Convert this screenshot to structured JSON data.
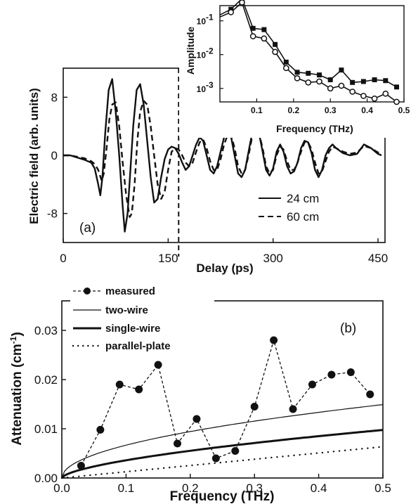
{
  "chart_data": [
    {
      "id": "panel-a",
      "type": "line",
      "panel_label": "(a)",
      "xlabel": "Delay (ps)",
      "ylabel": "Electric field (arb. units)",
      "xlim": [
        0,
        460
      ],
      "ylim": [
        -12,
        12
      ],
      "xticks": [
        0,
        150,
        300,
        450
      ],
      "yticks": [
        -8,
        0,
        8
      ],
      "dashed_marker_x": 165,
      "series": [
        {
          "name": "24 cm",
          "style": "solid",
          "x": [
            0,
            10,
            20,
            30,
            40,
            45,
            50,
            53,
            56,
            60,
            65,
            70,
            75,
            80,
            85,
            88,
            92,
            96,
            100,
            105,
            110,
            115,
            120,
            125,
            130,
            135,
            140,
            145,
            150,
            155,
            160,
            165,
            170,
            175,
            180,
            185,
            190,
            195,
            200,
            205,
            210,
            215,
            220,
            225,
            230,
            235,
            240,
            245,
            250,
            255,
            260,
            265,
            270,
            275,
            280,
            285,
            290,
            295,
            300,
            305,
            310,
            315,
            320,
            325,
            330,
            335,
            340,
            345,
            350,
            355,
            360,
            365,
            370,
            375,
            380,
            385,
            390,
            400,
            410,
            420,
            430,
            440,
            450,
            455
          ],
          "y": [
            0,
            0,
            -0.3,
            -0.6,
            -1.0,
            -1.8,
            -4.0,
            -5.5,
            -3.0,
            3.0,
            9.0,
            10.5,
            6.0,
            0.0,
            -7.0,
            -10.5,
            -8.0,
            -2.0,
            4.0,
            9.0,
            9.8,
            7.0,
            2.0,
            -3.0,
            -6.5,
            -6.0,
            -3.0,
            -0.5,
            0.8,
            1.2,
            1.0,
            0.2,
            -1.0,
            -2.0,
            -1.5,
            0.0,
            1.5,
            2.5,
            2.0,
            0.0,
            -2.0,
            -2.5,
            -1.5,
            0.5,
            2.5,
            3.3,
            2.5,
            0.0,
            -2.5,
            -3.0,
            -2.0,
            0.5,
            3.0,
            3.8,
            3.0,
            0.5,
            -2.0,
            -2.8,
            -1.8,
            0.5,
            1.5,
            0.5,
            -1.5,
            -2.5,
            -2.2,
            -1.0,
            1.0,
            2.0,
            1.8,
            0.3,
            -2.0,
            -3.0,
            -2.0,
            0.0,
            1.0,
            1.5,
            1.0,
            0.3,
            0.0,
            0.2,
            1.5,
            1.0,
            0.2,
            0.0
          ]
        },
        {
          "name": "60 cm",
          "style": "dashed",
          "x": [
            0,
            10,
            20,
            30,
            40,
            45,
            50,
            55,
            58,
            62,
            66,
            70,
            75,
            80,
            85,
            90,
            95,
            98,
            102,
            106,
            110,
            115,
            120,
            125,
            130,
            135,
            140,
            145,
            150,
            155,
            160,
            165,
            170,
            175,
            180,
            185,
            190,
            195,
            200,
            205,
            210,
            215,
            220,
            225,
            230,
            235,
            240,
            245,
            250,
            255,
            260,
            265,
            270,
            275,
            280,
            285,
            290,
            295,
            300,
            305,
            310,
            315,
            320,
            325,
            330,
            335,
            340,
            345,
            350,
            355,
            360,
            365,
            370,
            375,
            380,
            385,
            390,
            400,
            410,
            420,
            430,
            440,
            450,
            455
          ],
          "y": [
            0,
            0,
            -0.2,
            -0.4,
            -0.8,
            -1.2,
            -2.0,
            -3.5,
            -2.5,
            1.0,
            5.0,
            7.0,
            7.3,
            4.0,
            -1.0,
            -5.5,
            -8.5,
            -8.0,
            -4.0,
            2.0,
            6.0,
            7.5,
            7.0,
            4.0,
            0.0,
            -4.0,
            -6.0,
            -5.0,
            -2.0,
            0.5,
            1.0,
            0.8,
            0.0,
            -1.0,
            -1.5,
            -1.0,
            0.5,
            1.8,
            2.2,
            1.0,
            -0.8,
            -2.0,
            -2.0,
            -0.5,
            1.5,
            2.8,
            2.8,
            1.0,
            -1.5,
            -2.5,
            -2.0,
            0.0,
            2.5,
            3.5,
            3.0,
            1.0,
            -1.5,
            -2.5,
            -2.0,
            0.0,
            1.2,
            0.8,
            -0.8,
            -2.0,
            -2.0,
            -1.0,
            0.5,
            1.8,
            1.8,
            0.8,
            -1.0,
            -2.5,
            -2.2,
            -0.8,
            0.5,
            1.2,
            1.0,
            0.5,
            0.2,
            0.4,
            1.3,
            1.0,
            0.4,
            0.2
          ]
        }
      ]
    },
    {
      "id": "inset",
      "type": "line",
      "xlabel": "Frequency (THz)",
      "ylabel": "Amplitude",
      "y_scale": "log",
      "xlim": [
        0.0,
        0.5
      ],
      "ylim_log10": [
        -3.4,
        -0.55
      ],
      "xticks": [
        0.1,
        0.2,
        0.3,
        0.4,
        0.5
      ],
      "yticks": [
        {
          "base": "10",
          "exp": "-1",
          "value": 0.1
        },
        {
          "base": "10",
          "exp": "-2",
          "value": 0.01
        },
        {
          "base": "10",
          "exp": "-3",
          "value": 0.001
        }
      ],
      "series": [
        {
          "name": "24 cm",
          "marker": "square",
          "x": [
            0.0,
            0.03,
            0.06,
            0.09,
            0.12,
            0.15,
            0.18,
            0.21,
            0.24,
            0.27,
            0.3,
            0.33,
            0.36,
            0.39,
            0.42,
            0.45,
            0.48
          ],
          "y": [
            0.15,
            0.22,
            0.45,
            0.06,
            0.055,
            0.02,
            0.006,
            0.003,
            0.0028,
            0.0025,
            0.0018,
            0.0035,
            0.0015,
            0.0016,
            0.0018,
            0.0017,
            0.0011
          ]
        },
        {
          "name": "60 cm",
          "marker": "circle",
          "x": [
            0.0,
            0.03,
            0.06,
            0.09,
            0.12,
            0.15,
            0.18,
            0.21,
            0.24,
            0.27,
            0.3,
            0.33,
            0.36,
            0.39,
            0.42,
            0.45,
            0.48
          ],
          "y": [
            0.13,
            0.18,
            0.35,
            0.035,
            0.03,
            0.012,
            0.004,
            0.002,
            0.0015,
            0.0016,
            0.001,
            0.0012,
            0.0008,
            0.0006,
            0.0005,
            0.0007,
            0.0004
          ]
        }
      ]
    },
    {
      "id": "panel-b",
      "type": "line",
      "panel_label": "(b)",
      "xlabel": "Frequency (THz)",
      "ylabel": "Attenuation  (cm",
      "ylabel_sup": "-1",
      "ylabel_close": ")",
      "xlim": [
        0.0,
        0.5
      ],
      "ylim": [
        0.0,
        0.036
      ],
      "xticks": [
        0.0,
        0.1,
        0.2,
        0.3,
        0.4,
        0.5
      ],
      "xtick_labels": [
        "0.0",
        "0.1",
        "0.2",
        "0.3",
        "0.4",
        "0.5"
      ],
      "yticks": [
        0.0,
        0.01,
        0.02,
        0.03
      ],
      "ytick_labels": [
        "0.00",
        "0.01",
        "0.02",
        "0.03"
      ],
      "measured": {
        "name": "measured",
        "x": [
          0.03,
          0.06,
          0.09,
          0.12,
          0.15,
          0.18,
          0.21,
          0.24,
          0.27,
          0.3,
          0.33,
          0.36,
          0.39,
          0.42,
          0.45,
          0.48
        ],
        "y": [
          0.0025,
          0.0098,
          0.019,
          0.018,
          0.023,
          0.007,
          0.012,
          0.004,
          0.0055,
          0.0145,
          0.028,
          0.014,
          0.019,
          0.021,
          0.0215,
          0.017
        ]
      },
      "models": [
        {
          "name": "two-wire",
          "style": "thin",
          "coef": 0.0211,
          "power": 0.5
        },
        {
          "name": "single-wire",
          "style": "thick",
          "coef": 0.015,
          "power": 0.62
        },
        {
          "name": "parallel-plate",
          "style": "dotted",
          "coef": 0.0127,
          "power": 1.0
        }
      ]
    }
  ]
}
